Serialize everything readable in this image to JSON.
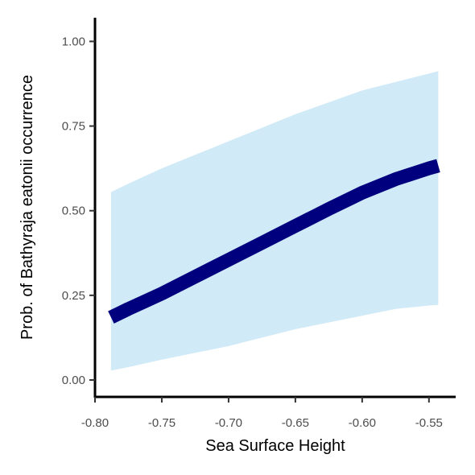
{
  "chart_data": {
    "type": "line",
    "title": "",
    "xlabel": "Sea Surface Height",
    "ylabel": "Prob. of  Bathyraja eatonii  occurrence",
    "xlim": [
      -0.8,
      -0.53
    ],
    "ylim": [
      -0.05,
      1.07
    ],
    "x_ticks": [
      -0.8,
      -0.75,
      -0.7,
      -0.65,
      -0.6,
      -0.55
    ],
    "x_tick_labels": [
      "-0.80",
      "-0.75",
      "-0.70",
      "-0.65",
      "-0.60",
      "-0.55"
    ],
    "y_ticks": [
      0,
      0.25,
      0.5,
      0.75,
      1
    ],
    "y_tick_labels": [
      "0.00",
      "0.25",
      "0.50",
      "0.75",
      "1.00"
    ],
    "grid": false,
    "x": [
      -0.788,
      -0.775,
      -0.75,
      -0.725,
      -0.7,
      -0.675,
      -0.65,
      -0.625,
      -0.6,
      -0.575,
      -0.55,
      -0.543
    ],
    "series": [
      {
        "values": [
          0.185,
          0.21,
          0.255,
          0.305,
          0.355,
          0.405,
          0.455,
          0.505,
          0.553,
          0.593,
          0.625,
          0.633
        ],
        "lower": [
          0.028,
          0.038,
          0.06,
          0.08,
          0.1,
          0.125,
          0.15,
          0.17,
          0.19,
          0.21,
          0.22,
          0.222
        ],
        "upper": [
          0.555,
          0.58,
          0.625,
          0.665,
          0.705,
          0.745,
          0.785,
          0.82,
          0.855,
          0.88,
          0.905,
          0.912
        ]
      }
    ],
    "colors": {
      "line": "#00007f",
      "ribbon": "#d0eaf7",
      "axis": "#000000"
    }
  }
}
